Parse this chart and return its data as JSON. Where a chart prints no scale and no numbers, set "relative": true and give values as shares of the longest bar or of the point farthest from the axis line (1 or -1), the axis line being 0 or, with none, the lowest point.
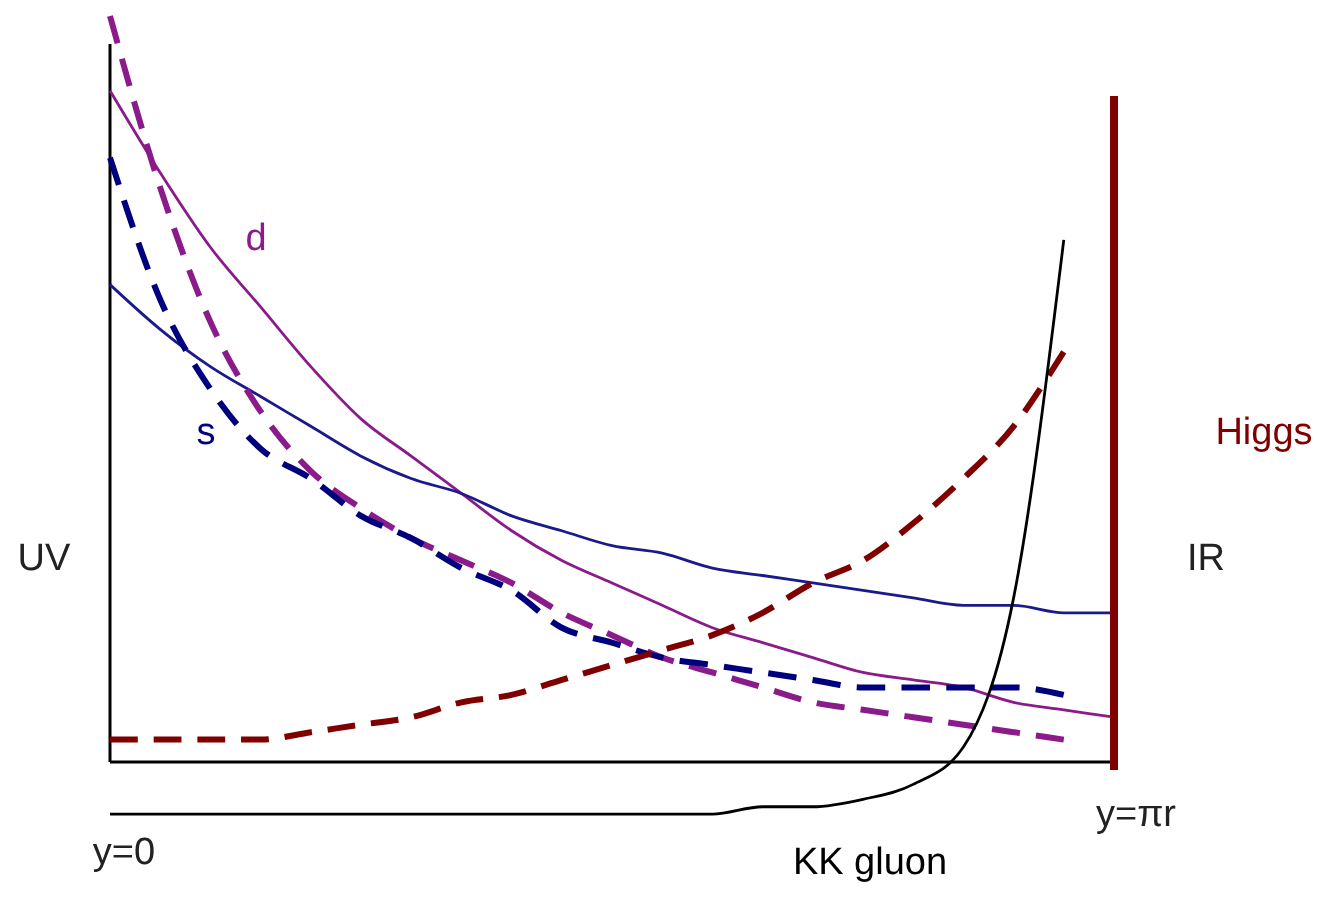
{
  "chart_data": {
    "type": "line",
    "relative": true,
    "categories": [
      null,
      null,
      null,
      null,
      null,
      null,
      null,
      null,
      null,
      null,
      null,
      null,
      null,
      null,
      null,
      null,
      null,
      null,
      null,
      null,
      null
    ],
    "series": [
      {
        "name": "d",
        "color": "#8b1a8b",
        "line_style": "solid",
        "values": [
          0.9,
          0.79,
          0.69,
          0.61,
          0.53,
          0.46,
          0.41,
          0.36,
          0.31,
          0.27,
          0.24,
          0.21,
          0.18,
          0.16,
          0.14,
          0.12,
          0.11,
          0.1,
          0.08,
          0.07,
          0.06
        ]
      },
      {
        "color": "#1a1a8b",
        "line_style": "solid",
        "values": [
          0.64,
          0.58,
          0.53,
          0.49,
          0.45,
          0.41,
          0.38,
          0.36,
          0.33,
          0.31,
          0.29,
          0.28,
          0.26,
          0.25,
          0.24,
          0.23,
          0.22,
          0.21,
          0.21,
          0.2,
          0.2
        ]
      },
      {
        "color": "#8b1a8b",
        "line_style": "dashed",
        "values": [
          1.0,
          0.77,
          0.59,
          0.47,
          0.39,
          0.34,
          0.3,
          0.27,
          0.24,
          0.2,
          0.17,
          0.14,
          0.12,
          0.1,
          0.08,
          0.07,
          0.06,
          0.05,
          0.04,
          0.03,
          null
        ]
      },
      {
        "name": "s",
        "color": "#00007f",
        "line_style": "dashed",
        "values": [
          0.81,
          0.62,
          0.5,
          0.42,
          0.38,
          0.33,
          0.3,
          0.26,
          0.23,
          0.18,
          0.16,
          0.14,
          0.13,
          0.12,
          0.11,
          0.1,
          0.1,
          0.1,
          0.1,
          0.09,
          null
        ]
      },
      {
        "name": "Higgs",
        "color": "#800000",
        "line_style": "dashed",
        "values": [
          0.03,
          0.03,
          0.03,
          0.03,
          0.04,
          0.05,
          0.06,
          0.08,
          0.09,
          0.11,
          0.13,
          0.15,
          0.17,
          0.2,
          0.24,
          0.27,
          0.32,
          0.38,
          0.45,
          0.55,
          null
        ]
      },
      {
        "name": "KK gluon",
        "color": "#000000",
        "line_style": "solid",
        "values": [
          -0.07,
          -0.07,
          -0.07,
          -0.07,
          -0.07,
          -0.07,
          -0.07,
          -0.07,
          -0.07,
          -0.07,
          -0.07,
          -0.07,
          -0.07,
          -0.06,
          -0.06,
          -0.05,
          -0.03,
          0.02,
          0.22,
          0.7,
          null
        ]
      }
    ],
    "annotations": [
      "UV",
      "IR",
      "y=0",
      "y=πr"
    ]
  }
}
